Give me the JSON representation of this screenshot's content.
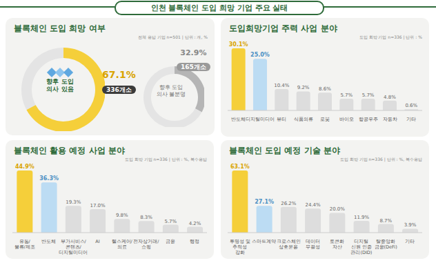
{
  "title": "인천 블록체인 도입 희망 기업 주요 실태",
  "chart_data": [
    {
      "type": "pie",
      "title": "블록체인 도입 희망 여부",
      "subtitle": "전체 응답 기업 n=501 | 단위 : 개, %",
      "categories": [
        "향후 도입 의사 있음",
        "향후 도입 의사 불분명"
      ],
      "values": [
        67.1,
        32.9
      ],
      "value_labels": [
        "67.1%",
        "32.9%"
      ],
      "counts": [
        336,
        165
      ],
      "count_labels": [
        "336개소",
        "165개소"
      ],
      "colors": [
        "#f5cf3a",
        "#b5b5b5"
      ],
      "data_labels": true
    },
    {
      "type": "bar",
      "title": "도입희망기업 주력 사업 분야",
      "subtitle": "도입 희망 기업 n=336 | 단위 : %",
      "categories": [
        "반도체",
        "디지털미디어",
        "뷰티",
        "식품의류",
        "로봇",
        "바이오",
        "항공우주",
        "자동차",
        "기타"
      ],
      "values": [
        30.1,
        25.0,
        10.4,
        9.2,
        8.6,
        5.7,
        5.7,
        4.8,
        0.6
      ],
      "value_labels": [
        "30.1%",
        "25.0%",
        "10.4%",
        "9.2%",
        "8.6%",
        "5.7%",
        "5.7%",
        "4.8%",
        "0.6%"
      ],
      "colors": [
        "#f5cf3a",
        "#bcdcf3",
        "#dddddd",
        "#dddddd",
        "#dddddd",
        "#dddddd",
        "#dddddd",
        "#dddddd",
        "#dddddd"
      ],
      "data_labels": true,
      "tick_labels": "x"
    },
    {
      "type": "bar",
      "title": "블록체인 활용 예정 사업 분야",
      "subtitle": "도입 희망 기업 n=336 | 단위 : %, 복수응답",
      "categories": [
        "유통/물류/제조",
        "반도체",
        "부가서비스/콘텐츠/디지털미디어",
        "AI",
        "헬스케어/의료",
        "전자상거래/쇼핑",
        "금융",
        "행정"
      ],
      "values": [
        44.9,
        36.3,
        19.3,
        17.0,
        9.8,
        8.3,
        5.7,
        4.2
      ],
      "value_labels": [
        "44.9%",
        "36.3%",
        "19.3%",
        "17.0%",
        "9.8%",
        "8.3%",
        "5.7%",
        "4.2%"
      ],
      "colors": [
        "#f5cf3a",
        "#bcdcf3",
        "#dddddd",
        "#dddddd",
        "#dddddd",
        "#dddddd",
        "#dddddd",
        "#dddddd"
      ],
      "data_labels": true,
      "tick_labels": "x"
    },
    {
      "type": "bar",
      "title": "블록체인 도입 예정 기술 분야",
      "subtitle": "도입 희망 기업 n=336 | 단위 : %, 복수응답",
      "categories": [
        "투명성 및 추적성 강화",
        "스마트계약",
        "크로스체인 상호운용",
        "데이터 무결성",
        "토큰화 자산",
        "디지털 신원 인증 관리(DID)",
        "탈중앙화 금융(DeFi)",
        "기타"
      ],
      "values": [
        63.1,
        27.1,
        26.2,
        24.4,
        20.0,
        11.9,
        8.7,
        3.9
      ],
      "value_labels": [
        "63.1%",
        "27.1%",
        "26.2%",
        "24.4%",
        "20.0%",
        "11.9%",
        "8.7%",
        "3.9%"
      ],
      "colors": [
        "#f5cf3a",
        "#bcdcf3",
        "#dddddd",
        "#dddddd",
        "#dddddd",
        "#dddddd",
        "#dddddd",
        "#dddddd"
      ],
      "data_labels": true,
      "tick_labels": "x"
    }
  ]
}
